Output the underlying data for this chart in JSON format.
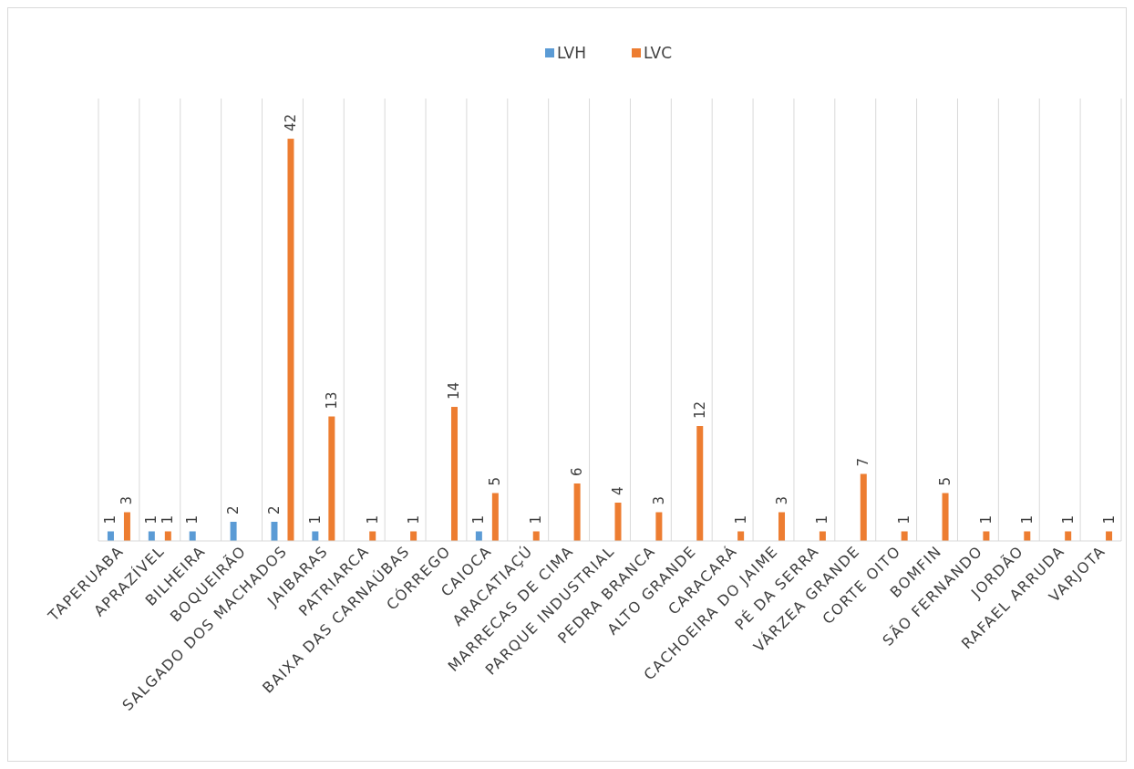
{
  "chart_data": {
    "type": "bar",
    "categories": [
      "TAPERUABA",
      "APRAZÍVEL",
      "BILHEIRA",
      "BOQUEIRÃO",
      "SALGADO DOS MACHADOS",
      "JAIBARAS",
      "PATRIARCA",
      "BAIXA DAS CARNAÚBAS",
      "CÓRREGO",
      "CAIOCA",
      "ARACATIAÇÚ",
      "MARRECAS DE CIMA",
      "PARQUE INDUSTRIAL",
      "PEDRA BRANCA",
      "ALTO GRANDE",
      "CARACARÁ",
      "CACHOEIRA DO JAIME",
      "PÉ DA SERRA",
      "VÁRZEA GRANDE",
      "CORTE OITO",
      "BOMFIN",
      "SÃO FERNANDO",
      "JORDÃO",
      "RAFAEL ARRUDA",
      "VARJOTA"
    ],
    "series": [
      {
        "name": "LVH",
        "color": "#5b9bd5",
        "values": [
          1,
          1,
          1,
          2,
          2,
          1,
          null,
          null,
          null,
          1,
          null,
          null,
          null,
          null,
          null,
          null,
          null,
          null,
          null,
          null,
          null,
          null,
          null,
          null,
          null
        ]
      },
      {
        "name": "LVC",
        "color": "#ed7d31",
        "values": [
          3,
          1,
          null,
          null,
          42,
          13,
          1,
          1,
          14,
          5,
          1,
          6,
          4,
          3,
          12,
          1,
          3,
          1,
          7,
          1,
          5,
          1,
          1,
          1,
          1
        ]
      }
    ],
    "data_labels": true,
    "grid": "x",
    "legend": "top"
  }
}
